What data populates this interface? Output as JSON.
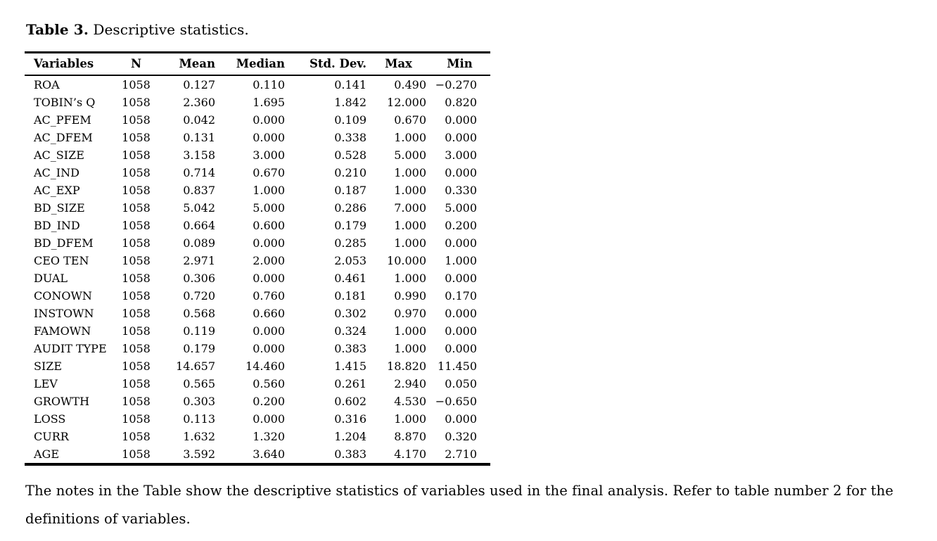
{
  "title": {
    "label": "Table 3.",
    "text": "Descriptive statistics."
  },
  "table": {
    "columns": [
      "Variables",
      "N",
      "Mean",
      "Median",
      "Std. Dev.",
      "Max",
      "Min"
    ],
    "rows": [
      [
        "ROA",
        "1058",
        "0.127",
        "0.110",
        "0.141",
        "0.490",
        "−0.270"
      ],
      [
        "TOBIN’s Q",
        "1058",
        "2.360",
        "1.695",
        "1.842",
        "12.000",
        "0.820"
      ],
      [
        "AC_PFEM",
        "1058",
        "0.042",
        "0.000",
        "0.109",
        "0.670",
        "0.000"
      ],
      [
        "AC_DFEM",
        "1058",
        "0.131",
        "0.000",
        "0.338",
        "1.000",
        "0.000"
      ],
      [
        "AC_SIZE",
        "1058",
        "3.158",
        "3.000",
        "0.528",
        "5.000",
        "3.000"
      ],
      [
        "AC_IND",
        "1058",
        "0.714",
        "0.670",
        "0.210",
        "1.000",
        "0.000"
      ],
      [
        "AC_EXP",
        "1058",
        "0.837",
        "1.000",
        "0.187",
        "1.000",
        "0.330"
      ],
      [
        "BD_SIZE",
        "1058",
        "5.042",
        "5.000",
        "0.286",
        "7.000",
        "5.000"
      ],
      [
        "BD_IND",
        "1058",
        "0.664",
        "0.600",
        "0.179",
        "1.000",
        "0.200"
      ],
      [
        "BD_DFEM",
        "1058",
        "0.089",
        "0.000",
        "0.285",
        "1.000",
        "0.000"
      ],
      [
        "CEO TEN",
        "1058",
        "2.971",
        "2.000",
        "2.053",
        "10.000",
        "1.000"
      ],
      [
        "DUAL",
        "1058",
        "0.306",
        "0.000",
        "0.461",
        "1.000",
        "0.000"
      ],
      [
        "CONOWN",
        "1058",
        "0.720",
        "0.760",
        "0.181",
        "0.990",
        "0.170"
      ],
      [
        "INSTOWN",
        "1058",
        "0.568",
        "0.660",
        "0.302",
        "0.970",
        "0.000"
      ],
      [
        "FAMOWN",
        "1058",
        "0.119",
        "0.000",
        "0.324",
        "1.000",
        "0.000"
      ],
      [
        "AUDIT TYPE",
        "1058",
        "0.179",
        "0.000",
        "0.383",
        "1.000",
        "0.000"
      ],
      [
        "SIZE",
        "1058",
        "14.657",
        "14.460",
        "1.415",
        "18.820",
        "11.450"
      ],
      [
        "LEV",
        "1058",
        "0.565",
        "0.560",
        "0.261",
        "2.940",
        "0.050"
      ],
      [
        "GROWTH",
        "1058",
        "0.303",
        "0.200",
        "0.602",
        "4.530",
        "−0.650"
      ],
      [
        "LOSS",
        "1058",
        "0.113",
        "0.000",
        "0.316",
        "1.000",
        "0.000"
      ],
      [
        "CURR",
        "1058",
        "1.632",
        "1.320",
        "1.204",
        "8.870",
        "0.320"
      ],
      [
        "AGE",
        "1058",
        "3.592",
        "3.640",
        "0.383",
        "4.170",
        "2.710"
      ]
    ]
  },
  "note": "The notes in the Table show the descriptive statistics of variables used in the final analysis. Refer to table number 2 for the definitions of variables."
}
